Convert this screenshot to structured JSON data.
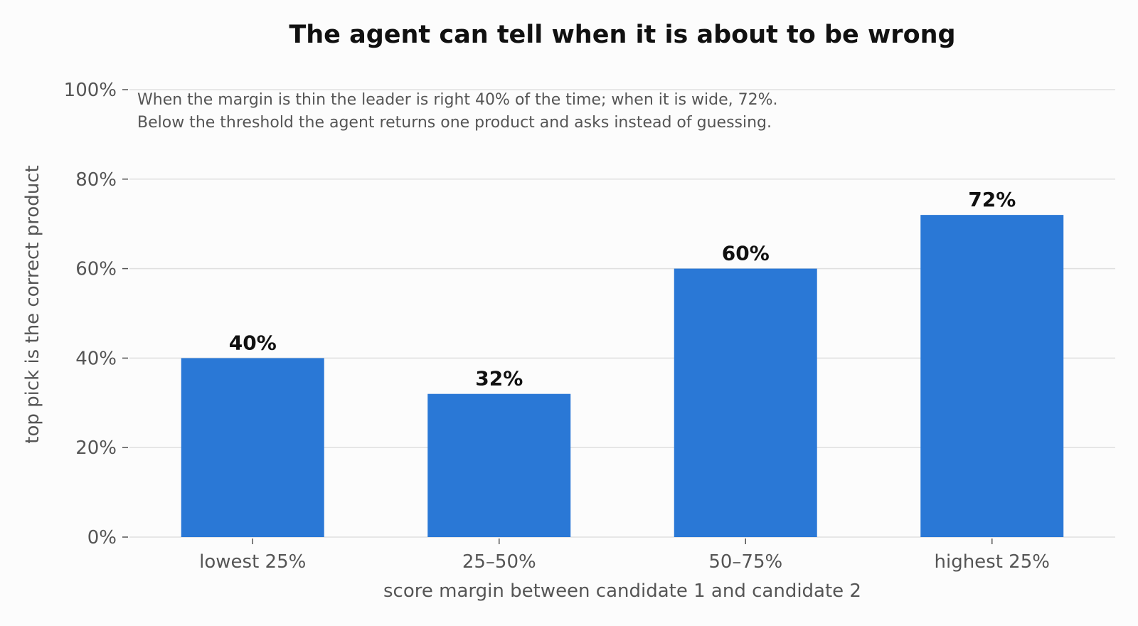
{
  "chart_data": {
    "type": "bar",
    "title": "The agent can tell when it is about to be wrong",
    "subtitle_lines": [
      "When the margin is thin the leader is right 40% of the time; when it is wide, 72%.",
      "Below the threshold the agent returns one product and asks instead of guessing."
    ],
    "xlabel": "score margin between candidate 1 and candidate 2",
    "ylabel": "top pick is the correct product",
    "categories": [
      "lowest 25%",
      "25–50%",
      "50–75%",
      "highest 25%"
    ],
    "values": [
      40,
      32,
      60,
      72
    ],
    "data_labels": [
      "40%",
      "32%",
      "60%",
      "72%"
    ],
    "ylim": [
      0,
      100
    ],
    "yticks": [
      0,
      20,
      40,
      60,
      80,
      100
    ],
    "ytick_labels": [
      "0%",
      "20%",
      "40%",
      "60%",
      "80%",
      "100%"
    ],
    "grid": true,
    "bar_color": "#2a78d6"
  }
}
